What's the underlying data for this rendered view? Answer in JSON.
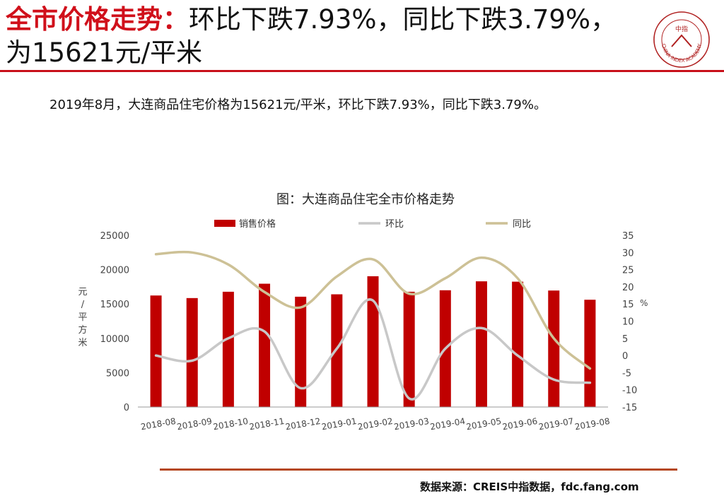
{
  "header": {
    "title_highlight": "全市价格走势：",
    "title_rest": "环比下跌7.93%，同比下跌3.79%，为15621元/平米",
    "logo_text": "CHINA INDEX ACADEMY",
    "logo_seal": "中指"
  },
  "description": "2019年8月，大连商品住宅价格为15621元/平米，环比下跌7.93%，同比下跌3.79%。",
  "source": "数据来源：CREIS中指数据，fdc.fang.com",
  "colors": {
    "bar": "#c00000",
    "mom": "#c8c8c8",
    "yoy": "#cdc196",
    "accent": "#d0101b"
  },
  "chart_data": {
    "type": "bar",
    "title": "图：大连商品住宅全市价格走势",
    "categories": [
      "2018-08",
      "2018-09",
      "2018-10",
      "2018-11",
      "2018-12",
      "2019-01",
      "2019-02",
      "2019-03",
      "2019-04",
      "2019-05",
      "2019-06",
      "2019-07",
      "2019-08"
    ],
    "ylabel": "元/平方米",
    "y2label": "%",
    "ylim": [
      0,
      25000
    ],
    "y2lim": [
      -15,
      35
    ],
    "yticks": [
      "0",
      "5000",
      "10000",
      "15000",
      "20000",
      "25000"
    ],
    "y2ticks": [
      "-15",
      "-10",
      "-5",
      "0",
      "5",
      "10",
      "15",
      "20",
      "25",
      "30",
      "35"
    ],
    "legend_position": "top",
    "series": [
      {
        "name": "销售价格",
        "type": "bar",
        "axis": "left",
        "values": [
          16236,
          15862,
          16783,
          17951,
          16060,
          16410,
          19040,
          16780,
          17000,
          18300,
          18250,
          16960,
          15621
        ]
      },
      {
        "name": "环比",
        "type": "line",
        "axis": "right",
        "values": [
          0,
          -1.5,
          5,
          7,
          -9.5,
          2,
          16,
          -12.5,
          2,
          8,
          0,
          -7,
          -7.93
        ]
      },
      {
        "name": "同比",
        "type": "line",
        "axis": "right",
        "values": [
          29.5,
          30,
          26.5,
          18.5,
          14,
          23,
          28,
          18,
          22.5,
          28.5,
          22.5,
          5,
          -3.79
        ]
      }
    ]
  }
}
